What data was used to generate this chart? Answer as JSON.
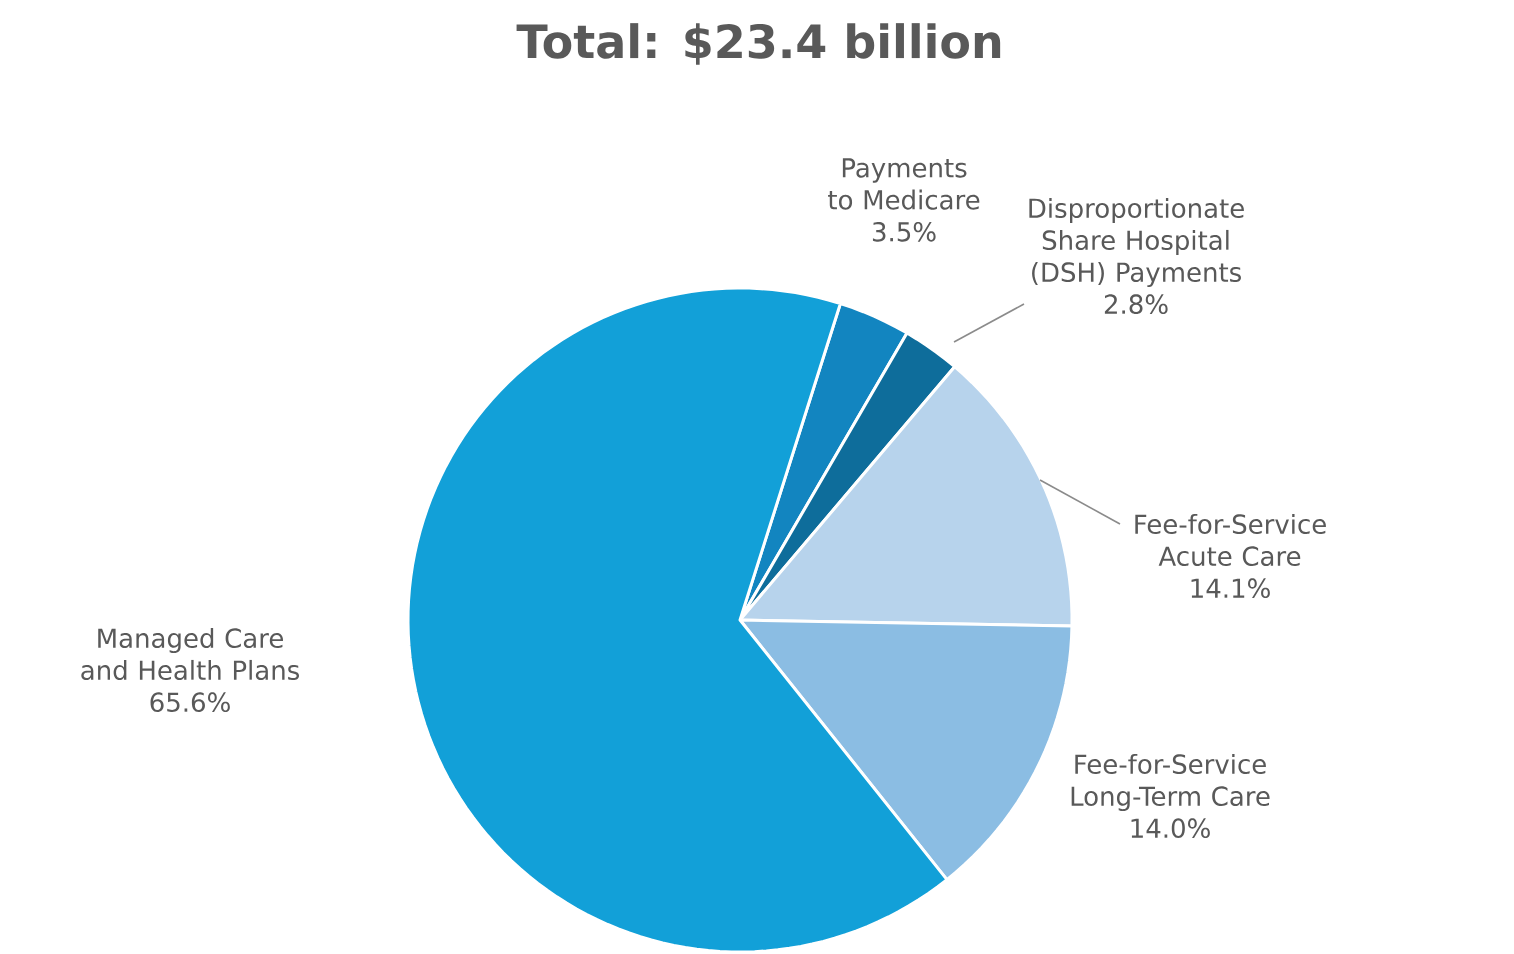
{
  "chart_data": {
    "type": "pie",
    "title": "Total: $23.4 billion",
    "categories": [
      "Payments to Medicare",
      "Disproportionate Share Hospital (DSH) Payments",
      "Fee-for-Service Acute Care",
      "Fee-for-Service Long-Term Care",
      "Managed Care and Health Plans"
    ],
    "values": [
      3.5,
      2.8,
      14.1,
      14.0,
      65.6
    ],
    "value_labels": [
      "3.5%",
      "2.8%",
      "14.1%",
      "14.0%",
      "65.6%"
    ],
    "colors": [
      "#1285c0",
      "#0e6d9b",
      "#b7d3ec",
      "#8bbde3",
      "#12a0d8"
    ]
  }
}
